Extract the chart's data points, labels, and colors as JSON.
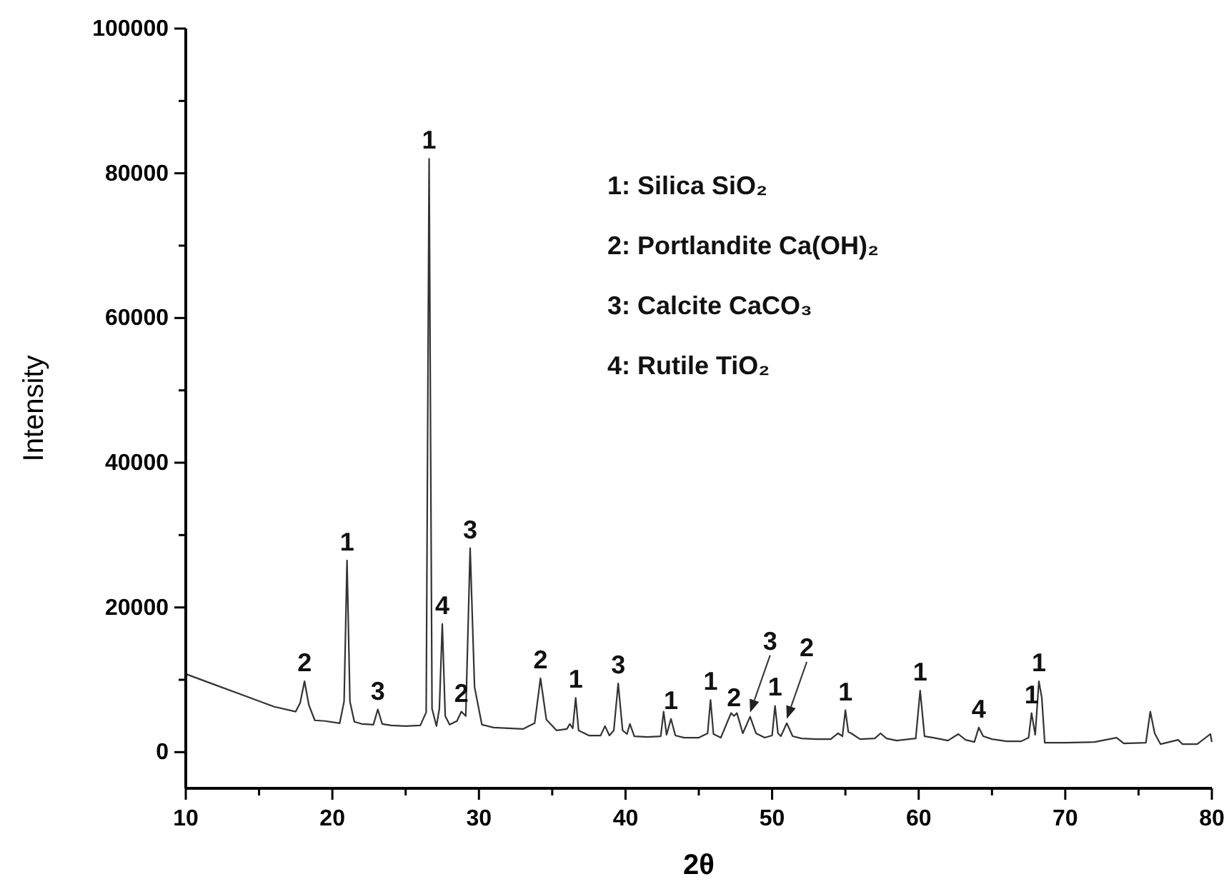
{
  "chart_data": {
    "type": "line",
    "xlabel": "2θ",
    "ylabel": "Intensity",
    "xlim": [
      10,
      80
    ],
    "ylim": [
      -5000,
      100000
    ],
    "xticks": [
      10,
      {
        "value": 15,
        "label": null
      },
      20,
      {
        "value": 25,
        "label": null
      },
      30,
      {
        "value": 35,
        "label": null
      },
      40,
      {
        "value": 45,
        "label": null
      },
      50,
      {
        "value": 55,
        "label": null
      },
      60,
      {
        "value": 65,
        "label": null
      },
      70,
      {
        "value": 75,
        "label": null
      },
      80
    ],
    "yticks": [
      0,
      {
        "value": 10000,
        "label": null
      },
      20000,
      {
        "value": 30000,
        "label": null
      },
      40000,
      {
        "value": 50000,
        "label": null
      },
      60000,
      {
        "value": 70000,
        "label": null
      },
      80000,
      {
        "value": 90000,
        "label": null
      },
      100000
    ],
    "grid": false,
    "marker": "none",
    "line_style": "solid",
    "series": [
      {
        "color": "#333333",
        "x": [
          10,
          12,
          14,
          16,
          17.5,
          17.8,
          18.1,
          18.4,
          18.8,
          19.5,
          20.5,
          20.8,
          21,
          21.2,
          21.5,
          22,
          22.8,
          23.1,
          23.4,
          24,
          25,
          26,
          26.4,
          26.6,
          26.8,
          27.1,
          27.3,
          27.5,
          27.7,
          28,
          28.5,
          28.8,
          29.1,
          29.4,
          29.7,
          30.2,
          31,
          32,
          33,
          33.8,
          34.2,
          34.6,
          35.3,
          36,
          36.2,
          36.4,
          36.6,
          36.8,
          37.5,
          38.3,
          38.6,
          38.9,
          39.2,
          39.5,
          39.8,
          40.1,
          40.3,
          40.6,
          41.5,
          42.4,
          42.6,
          42.8,
          43.1,
          43.4,
          44,
          45,
          45.6,
          45.8,
          46,
          46.5,
          47.2,
          47.4,
          47.6,
          48,
          48.5,
          48.9,
          49.5,
          50,
          50.2,
          50.4,
          50.6,
          51,
          51.4,
          52,
          53,
          54,
          54.5,
          54.8,
          55,
          55.2,
          55.4,
          56,
          57,
          57.4,
          57.8,
          58.5,
          59.8,
          60.1,
          60.4,
          61,
          62,
          62.7,
          63.2,
          63.8,
          64.1,
          64.4,
          65,
          66,
          67,
          67.5,
          67.7,
          67.95,
          68.2,
          68.4,
          68.6,
          70,
          72,
          73.5,
          74,
          75.5,
          75.8,
          76.1,
          76.5,
          77.7,
          78,
          79,
          79.9,
          80
        ],
        "values": [
          10800,
          9300,
          7800,
          6300,
          5600,
          6800,
          9800,
          6500,
          4400,
          4300,
          4000,
          7000,
          26500,
          7000,
          4200,
          3900,
          3800,
          5900,
          3900,
          3700,
          3600,
          3700,
          5500,
          82000,
          6000,
          3600,
          6000,
          17700,
          5000,
          3800,
          4300,
          5600,
          5000,
          28200,
          9000,
          3800,
          3400,
          3300,
          3200,
          4000,
          10200,
          4500,
          3000,
          3200,
          3900,
          3300,
          7500,
          3000,
          2300,
          2300,
          3600,
          2300,
          3000,
          9500,
          3000,
          2500,
          3900,
          2200,
          2100,
          2200,
          5600,
          2400,
          4600,
          2300,
          2000,
          2000,
          2600,
          7200,
          2500,
          2000,
          5400,
          5000,
          5400,
          2600,
          4900,
          2600,
          2000,
          2300,
          6400,
          2600,
          2200,
          4000,
          2200,
          1900,
          1800,
          1800,
          2600,
          2200,
          5800,
          2800,
          2600,
          1800,
          1900,
          2600,
          1900,
          1600,
          1900,
          8500,
          2200,
          2000,
          1600,
          2500,
          1700,
          1400,
          3400,
          2200,
          1800,
          1500,
          1500,
          2000,
          5400,
          2400,
          9800,
          7500,
          1300,
          1300,
          1400,
          2000,
          1200,
          1300,
          5600,
          2600,
          1100,
          1700,
          1100,
          1100,
          2500,
          1400
        ]
      }
    ],
    "annotations": [
      "1: Silica SiO₂",
      "2: Portlandite Ca(OH)₂",
      "3: Calcite CaCO₃",
      "4: Rutile TiO₂",
      {
        "text": "2",
        "x": 18.1,
        "y": 9800
      },
      {
        "text": "1",
        "x": 21,
        "y": 26500
      },
      {
        "text": "3",
        "x": 23.1,
        "y": 5900
      },
      {
        "text": "1",
        "x": 26.6,
        "y": 82000
      },
      {
        "text": "4",
        "x": 27.5,
        "y": 17700
      },
      {
        "text": "2",
        "x": 28.8,
        "y": 5600
      },
      {
        "text": "3",
        "x": 29.4,
        "y": 28200
      },
      {
        "text": "2",
        "x": 34.2,
        "y": 10200
      },
      {
        "text": "1",
        "x": 36.6,
        "y": 7500
      },
      {
        "text": "3",
        "x": 39.5,
        "y": 9500
      },
      {
        "text": "1",
        "x": 43.1,
        "y": 4600
      },
      {
        "text": "1",
        "x": 45.8,
        "y": 7200
      },
      {
        "text": "2",
        "x": 47.4,
        "y": 5000
      },
      {
        "text": "3",
        "x": 48.5,
        "y": 4900
      },
      {
        "text": "1",
        "x": 50.2,
        "y": 6400
      },
      {
        "text": "2",
        "x": 51,
        "y": 4000
      },
      {
        "text": "1",
        "x": 55,
        "y": 5800
      },
      {
        "text": "1",
        "x": 60.1,
        "y": 8500
      },
      {
        "text": "4",
        "x": 64.1,
        "y": 3400
      },
      {
        "text": "1",
        "x": 67.7,
        "y": 5400
      },
      {
        "text": "1",
        "x": 68.2,
        "y": 9800
      }
    ]
  }
}
